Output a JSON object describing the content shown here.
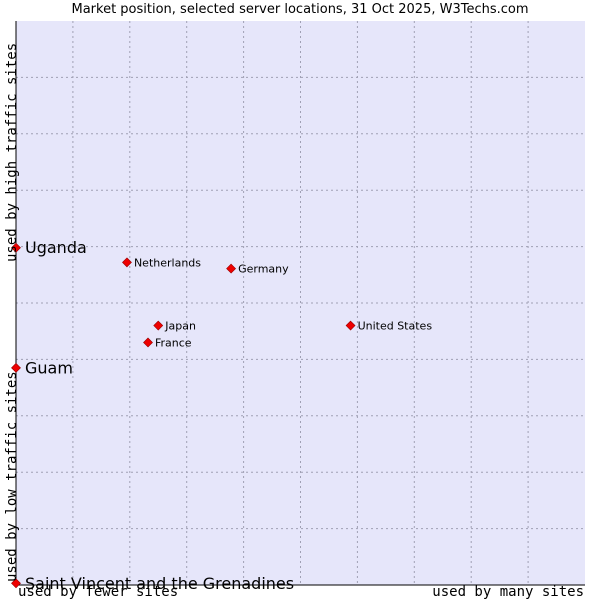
{
  "chart_data": {
    "type": "scatter",
    "title": "Market position, selected server locations, 31 Oct 2025, W3Techs.com",
    "xlabel_left": "used by fewer sites",
    "xlabel_right": "used by many sites",
    "ylabel_bottom": "used by low traffic sites",
    "ylabel_top": "used by high traffic sites",
    "xlim": [
      0,
      10
    ],
    "ylim": [
      0,
      10
    ],
    "points": [
      {
        "name": "Uganda",
        "x": 0.0,
        "y": 5.98,
        "highlight": true
      },
      {
        "name": "Guam",
        "x": 0.0,
        "y": 3.85,
        "highlight": true
      },
      {
        "name": "Saint Vincent and the Grenadines",
        "x": 0.0,
        "y": 0.03,
        "highlight": true
      },
      {
        "name": "Netherlands",
        "x": 1.95,
        "y": 5.72,
        "highlight": false
      },
      {
        "name": "Germany",
        "x": 3.78,
        "y": 5.61,
        "highlight": false
      },
      {
        "name": "United States",
        "x": 5.88,
        "y": 4.6,
        "highlight": false
      },
      {
        "name": "Japan",
        "x": 2.5,
        "y": 4.6,
        "highlight": false
      },
      {
        "name": "France",
        "x": 2.32,
        "y": 4.3,
        "highlight": false
      }
    ],
    "colors": {
      "plot_bg": "#e6e6fa",
      "grid": "#a0a0b4",
      "marker": "#ee0000",
      "marker_edge": "#990000"
    }
  }
}
